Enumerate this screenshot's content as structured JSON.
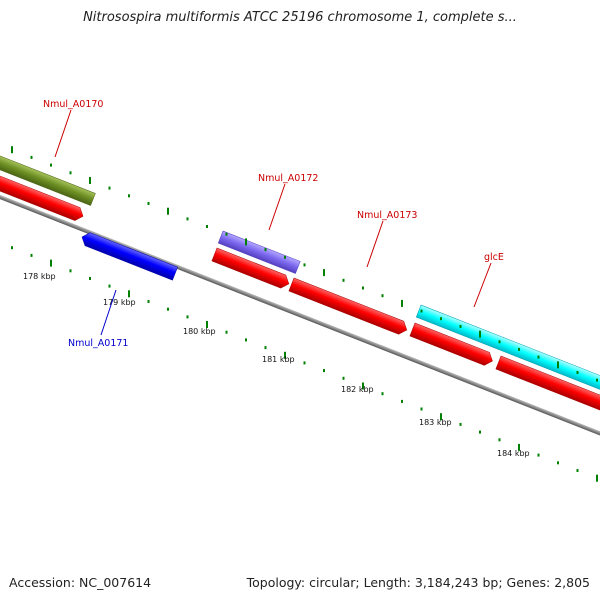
{
  "title": "Nitrosospira multiformis ATCC 25196 chromosome 1, complete s...",
  "footer": {
    "accession": "Accession: NC_007614",
    "summary": "Topology: circular; Length: 3,184,243 bp; Genes: 2,805"
  },
  "colors": {
    "backbone": "#888888",
    "forward_gene": "#ff0000",
    "reverse_gene": "#0000ff",
    "tick": "#008000",
    "label_forward": "#cc0000",
    "label_reverse": "#0000cc"
  },
  "scale_labels": [
    "178 kbp",
    "179 kbp",
    "180 kbp",
    "181 kbp",
    "182 kbp",
    "183 kbp",
    "184 kbp"
  ],
  "gene_labels": {
    "nmul_a0170": "Nmul_A0170",
    "nmul_a0171": "Nmul_A0171",
    "nmul_a0172": "Nmul_A0172",
    "nmul_a0173": "Nmul_A0173",
    "glce": "glcE"
  },
  "features": [
    {
      "name": "Nmul_A0170",
      "type": "CDS",
      "strand": "+",
      "color": "#ff0000"
    },
    {
      "name": "Nmul_A0170",
      "type": "COG",
      "strand": "+",
      "color": "#6b8e23"
    },
    {
      "name": "Nmul_A0171",
      "type": "CDS",
      "strand": "-",
      "color": "#0000ff"
    },
    {
      "name": "Nmul_A0172",
      "type": "CDS",
      "strand": "+",
      "color": "#ff0000"
    },
    {
      "name": "Nmul_A0172",
      "type": "COG",
      "strand": "+",
      "color": "#7b68ee"
    },
    {
      "name": "Nmul_A0173",
      "type": "CDS",
      "strand": "+",
      "color": "#ff0000"
    },
    {
      "name": "glcE",
      "type": "CDS",
      "strand": "+",
      "color": "#ff0000"
    },
    {
      "name": "glcE",
      "type": "COG",
      "strand": "+",
      "color": "#00ffff"
    }
  ]
}
